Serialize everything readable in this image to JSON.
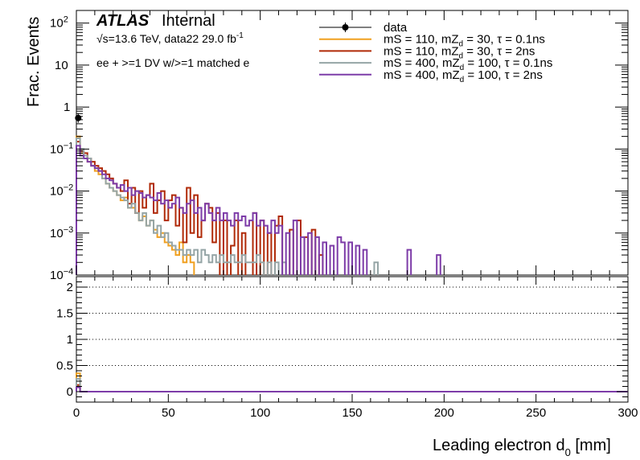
{
  "atlas_label": "ATLAS",
  "atlas_status": "Internal",
  "energy_text": "√s=13.6 TeV, data22 29.0 fb",
  "energy_sup": "-1",
  "selection_text": "ee + >=1 DV w/>=1 matched e",
  "ylabel": "Frac. Events",
  "xlabel": "Leading electron d",
  "xlabel_sub": "0",
  "xlabel_unit": " [mm]",
  "legend": [
    {
      "label": "data",
      "color": "#000000",
      "kind": "marker"
    },
    {
      "label": "mS = 110, mZ",
      "sub": "d",
      "rest": " = 30, τ = 0.1ns",
      "color": "#f0a020",
      "kind": "line"
    },
    {
      "label": "mS = 110, mZ",
      "sub": "d",
      "rest": " = 30, τ = 2ns",
      "color": "#b02a08",
      "kind": "line"
    },
    {
      "label": "mS = 400, mZ",
      "sub": "d",
      "rest": " = 100, τ = 0.1ns",
      "color": "#95a5a6",
      "kind": "line"
    },
    {
      "label": "mS = 400, mZ",
      "sub": "d",
      "rest": " = 100, τ = 2ns",
      "color": "#7d3ca8",
      "kind": "line"
    }
  ],
  "chart_data": {
    "type": "histogram",
    "title": "",
    "xlabel": "Leading electron d0 [mm]",
    "ylabel": "Frac. Events",
    "xlim": [
      0,
      300
    ],
    "ylim_log": [
      0.0001,
      200
    ],
    "x_ticks": [
      "0",
      "50",
      "100",
      "150",
      "200",
      "250",
      "300"
    ],
    "y_ticks": [
      "10^-4",
      "10^-3",
      "10^-2",
      "10^-1",
      "1",
      "10",
      "10^2"
    ],
    "ratio_ticks": [
      "0",
      "0.5",
      "1",
      "1.5",
      "2"
    ],
    "ratio_ylim": [
      -0.2,
      2.2
    ],
    "bin_width": 2,
    "data_points": [
      {
        "x": 1,
        "y": 0.55
      }
    ],
    "series": [
      {
        "name": "mS = 110, mZd = 30, τ = 0.1ns",
        "color": "#f0a020",
        "bins": [
          [
            0,
            0.2
          ],
          [
            2,
            0.08
          ],
          [
            4,
            0.07
          ],
          [
            6,
            0.05
          ],
          [
            8,
            0.04
          ],
          [
            10,
            0.03
          ],
          [
            12,
            0.025
          ],
          [
            14,
            0.02
          ],
          [
            16,
            0.015
          ],
          [
            18,
            0.012
          ],
          [
            20,
            0.01
          ],
          [
            22,
            0.008
          ],
          [
            24,
            0.006
          ],
          [
            26,
            0.007
          ],
          [
            28,
            0.004
          ],
          [
            30,
            0.004
          ],
          [
            32,
            0.003
          ],
          [
            34,
            0.002
          ],
          [
            36,
            0.0025
          ],
          [
            38,
            0.0015
          ],
          [
            40,
            0.002
          ],
          [
            42,
            0.0012
          ],
          [
            44,
            0.0008
          ],
          [
            46,
            0.001
          ],
          [
            48,
            0.0006
          ],
          [
            50,
            0.0005
          ],
          [
            52,
            0.0004
          ],
          [
            54,
            0.0003
          ],
          [
            56,
            0.0006
          ],
          [
            58,
            0.0002
          ],
          [
            60,
            0.0003
          ],
          [
            62,
            0.0002
          ]
        ]
      },
      {
        "name": "mS = 110, mZd = 30, τ = 2ns",
        "color": "#b02a08",
        "bins": [
          [
            0,
            0.15
          ],
          [
            2,
            0.09
          ],
          [
            4,
            0.08
          ],
          [
            6,
            0.06
          ],
          [
            8,
            0.05
          ],
          [
            10,
            0.04
          ],
          [
            12,
            0.035
          ],
          [
            14,
            0.03
          ],
          [
            16,
            0.025
          ],
          [
            18,
            0.02
          ],
          [
            20,
            0.015
          ],
          [
            22,
            0.012
          ],
          [
            24,
            0.01
          ],
          [
            26,
            0.018
          ],
          [
            28,
            0.005
          ],
          [
            30,
            0.012
          ],
          [
            32,
            0.003
          ],
          [
            34,
            0.01
          ],
          [
            36,
            0.004
          ],
          [
            38,
            0.008
          ],
          [
            40,
            0.015
          ],
          [
            42,
            0.003
          ],
          [
            44,
            0.006
          ],
          [
            46,
            0.01
          ],
          [
            48,
            0.002
          ],
          [
            50,
            0.006
          ],
          [
            52,
            0.008
          ],
          [
            54,
            0.0015
          ],
          [
            56,
            0.004
          ],
          [
            58,
            0.0006
          ],
          [
            60,
            0.012
          ],
          [
            62,
            0.001
          ],
          [
            64,
            0.008
          ],
          [
            66,
            0.0008
          ],
          [
            68,
            0.002
          ],
          [
            70,
            0.005
          ],
          [
            72,
            0.004
          ],
          [
            74,
            0.0006
          ],
          [
            76,
            0.003
          ],
          [
            80,
            0.002
          ],
          [
            84,
            0.0005
          ],
          [
            86,
            0.002
          ],
          [
            90,
            0.001
          ],
          [
            96,
            0.003
          ],
          [
            100,
            0.002
          ],
          [
            104,
            0.001
          ],
          [
            108,
            0.0015
          ],
          [
            110,
            0.0025
          ],
          [
            116,
            0.0012
          ],
          [
            120,
            0.002
          ],
          [
            124,
            0.0008
          ],
          [
            128,
            0.0012
          ],
          [
            132,
            0.0003
          ]
        ]
      },
      {
        "name": "mS = 400, mZd = 100, τ = 0.1ns",
        "color": "#95a5a6",
        "bins": [
          [
            0,
            0.18
          ],
          [
            2,
            0.1
          ],
          [
            4,
            0.07
          ],
          [
            6,
            0.06
          ],
          [
            8,
            0.04
          ],
          [
            10,
            0.035
          ],
          [
            12,
            0.03
          ],
          [
            14,
            0.02
          ],
          [
            16,
            0.015
          ],
          [
            18,
            0.012
          ],
          [
            20,
            0.01
          ],
          [
            22,
            0.008
          ],
          [
            24,
            0.007
          ],
          [
            26,
            0.006
          ],
          [
            28,
            0.004
          ],
          [
            30,
            0.005
          ],
          [
            32,
            0.003
          ],
          [
            34,
            0.002
          ],
          [
            36,
            0.003
          ],
          [
            38,
            0.0015
          ],
          [
            40,
            0.002
          ],
          [
            42,
            0.001
          ],
          [
            44,
            0.0015
          ],
          [
            46,
            0.0008
          ],
          [
            48,
            0.001
          ],
          [
            50,
            0.0006
          ],
          [
            52,
            0.0005
          ],
          [
            54,
            0.0004
          ],
          [
            56,
            0.0004
          ],
          [
            58,
            0.0003
          ],
          [
            60,
            0.0004
          ],
          [
            62,
            0.0003
          ],
          [
            64,
            0.0004
          ],
          [
            66,
            0.0002
          ],
          [
            68,
            0.0004
          ],
          [
            70,
            0.0003
          ],
          [
            72,
            0.0002
          ],
          [
            74,
            0.0003
          ],
          [
            76,
            0.0002
          ],
          [
            78,
            0.0003
          ],
          [
            80,
            0.0002
          ],
          [
            82,
            0.0002
          ],
          [
            84,
            0.0003
          ],
          [
            86,
            0.0002
          ],
          [
            88,
            0.0002
          ],
          [
            90,
            0.0003
          ],
          [
            92,
            0.0002
          ],
          [
            94,
            0.0002
          ],
          [
            96,
            0.0002
          ],
          [
            98,
            0.0003
          ],
          [
            100,
            0.0002
          ],
          [
            104,
            0.0002
          ],
          [
            108,
            0.0002
          ],
          [
            112,
            0.0002
          ],
          [
            162,
            0.0002
          ]
        ]
      },
      {
        "name": "mS = 400, mZd = 100, τ = 2ns",
        "color": "#7d3ca8",
        "bins": [
          [
            0,
            0.12
          ],
          [
            2,
            0.07
          ],
          [
            4,
            0.06
          ],
          [
            6,
            0.05
          ],
          [
            8,
            0.04
          ],
          [
            10,
            0.035
          ],
          [
            12,
            0.03
          ],
          [
            14,
            0.025
          ],
          [
            16,
            0.02
          ],
          [
            18,
            0.018
          ],
          [
            20,
            0.015
          ],
          [
            22,
            0.012
          ],
          [
            24,
            0.014
          ],
          [
            26,
            0.01
          ],
          [
            28,
            0.012
          ],
          [
            30,
            0.008
          ],
          [
            32,
            0.01
          ],
          [
            34,
            0.009
          ],
          [
            36,
            0.007
          ],
          [
            38,
            0.008
          ],
          [
            40,
            0.007
          ],
          [
            42,
            0.006
          ],
          [
            44,
            0.009
          ],
          [
            46,
            0.005
          ],
          [
            48,
            0.006
          ],
          [
            50,
            0.004
          ],
          [
            52,
            0.005
          ],
          [
            54,
            0.007
          ],
          [
            56,
            0.004
          ],
          [
            58,
            0.003
          ],
          [
            60,
            0.005
          ],
          [
            62,
            0.006
          ],
          [
            64,
            0.003
          ],
          [
            66,
            0.004
          ],
          [
            68,
            0.002
          ],
          [
            70,
            0.005
          ],
          [
            72,
            0.003
          ],
          [
            74,
            0.002
          ],
          [
            76,
            0.004
          ],
          [
            78,
            0.002
          ],
          [
            80,
            0.003
          ],
          [
            82,
            0.002
          ],
          [
            84,
            0.0015
          ],
          [
            86,
            0.003
          ],
          [
            88,
            0.002
          ],
          [
            90,
            0.0025
          ],
          [
            92,
            0.0015
          ],
          [
            94,
            0.002
          ],
          [
            96,
            0.003
          ],
          [
            98,
            0.0015
          ],
          [
            100,
            0.002
          ],
          [
            102,
            0.0015
          ],
          [
            104,
            0.001
          ],
          [
            106,
            0.002
          ],
          [
            108,
            0.001
          ],
          [
            110,
            0.0015
          ],
          [
            114,
            0.001
          ],
          [
            118,
            0.002
          ],
          [
            122,
            0.0008
          ],
          [
            126,
            0.001
          ],
          [
            130,
            0.0008
          ],
          [
            134,
            0.0006
          ],
          [
            138,
            0.0005
          ],
          [
            142,
            0.0008
          ],
          [
            144,
            0.0006
          ],
          [
            148,
            0.0006
          ],
          [
            152,
            0.0005
          ],
          [
            156,
            0.0004
          ],
          [
            180,
            0.0004
          ],
          [
            196,
            0.0003
          ]
        ]
      }
    ],
    "ratio": {
      "value": 0,
      "first_bin_values": [
        0.35,
        0.15
      ]
    }
  }
}
